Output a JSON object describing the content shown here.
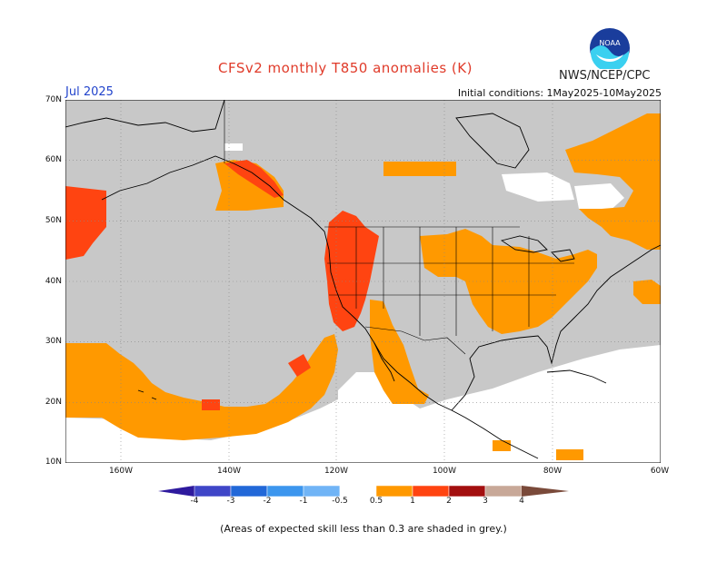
{
  "title": "CFSv2 monthly T850 anomalies (K)",
  "agency": "NWS/NCEP/CPC",
  "logo_text": "NOAA",
  "month": "Jul 2025",
  "initial_conditions": "Initial conditions: 1May2025-10May2025",
  "footnote": "(Areas of expected skill less than 0.3 are shaded in grey.)",
  "map": {
    "lat_labels": [
      "70N",
      "60N",
      "50N",
      "40N",
      "30N",
      "20N",
      "10N"
    ],
    "lon_labels": [
      "160W",
      "140W",
      "120W",
      "100W",
      "80W",
      "60W"
    ],
    "colors": {
      "grey_low_skill": "#c8c8c8",
      "orange_0_5_1": "#ff9900",
      "redorange_1_2": "#ff4411",
      "land_outline": "#000000",
      "ocean_no_signal": "#ffffff"
    }
  },
  "colorbar": {
    "labels": [
      "-4",
      "-3",
      "-2",
      "-1",
      "-0.5",
      "0.5",
      "1",
      "2",
      "3",
      "4"
    ],
    "colors": [
      "#2e1a9e",
      "#3f46c8",
      "#2268d8",
      "#3c96ee",
      "#70b4f6",
      "#ffffff",
      "#ff9900",
      "#ff4411",
      "#a30f0f",
      "#c8a898",
      "#7a4a3a"
    ]
  }
}
